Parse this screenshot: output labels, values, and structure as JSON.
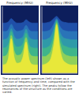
{
  "chart_data": [
    {
      "type": "area",
      "xlabel": "Frequency (MHz)",
      "x": [
        0,
        1,
        2,
        3,
        4,
        5,
        6,
        7,
        8,
        9,
        10,
        11,
        12
      ],
      "xlim": [
        0,
        12
      ],
      "ylim": [
        0,
        12
      ],
      "tick_labels": false,
      "grid": false,
      "series": [
        {
          "color": "#1f4fa8",
          "values": [
            9,
            9,
            9.2,
            9.8,
            9.3,
            9,
            9,
            9.1,
            9.6,
            9.2,
            9,
            9,
            9
          ]
        },
        {
          "color": "#2a74b8",
          "values": [
            7.5,
            7.5,
            7.8,
            8.8,
            7.9,
            7.5,
            7.6,
            7.8,
            8.6,
            7.8,
            7.5,
            7.5,
            7.5
          ]
        },
        {
          "color": "#2f9aa8",
          "values": [
            6,
            6.1,
            6.5,
            8,
            6.6,
            6.1,
            6.2,
            6.6,
            7.9,
            6.5,
            6.1,
            6,
            6
          ]
        },
        {
          "color": "#3fb58a",
          "values": [
            4.5,
            4.6,
            5.2,
            7.5,
            5.3,
            4.7,
            4.8,
            5.4,
            7.2,
            5.1,
            4.6,
            4.5,
            4.5
          ]
        },
        {
          "color": "#8fd05a",
          "values": [
            3,
            3.1,
            3.9,
            6.8,
            4,
            3.2,
            3.3,
            4.2,
            6.4,
            3.8,
            3.1,
            3,
            3
          ]
        },
        {
          "color": "#e8e83a",
          "values": [
            1.5,
            1.6,
            2.6,
            6.2,
            2.8,
            1.8,
            1.9,
            3,
            5.6,
            2.5,
            1.6,
            1.5,
            1.5
          ]
        }
      ]
    },
    {
      "type": "area",
      "xlabel": "Frequency (MHz)",
      "x": [
        0,
        1,
        2,
        3,
        4,
        5,
        6,
        7,
        8,
        9,
        10,
        11,
        12
      ],
      "xlim": [
        0,
        12
      ],
      "ylim": [
        0,
        12
      ],
      "tick_labels": false,
      "grid": false,
      "series": [
        {
          "color": "#1f4fa8",
          "values": [
            9,
            9,
            9.1,
            9.3,
            9.8,
            10.2,
            9.6,
            9.2,
            9.1,
            9,
            9,
            9,
            9
          ]
        },
        {
          "color": "#2a74b8",
          "values": [
            7.5,
            7.5,
            7.6,
            7.9,
            8.8,
            9.8,
            8.5,
            7.8,
            7.6,
            7.5,
            7.5,
            7.5,
            7.5
          ]
        },
        {
          "color": "#2f9aa8",
          "values": [
            6,
            6,
            6.2,
            6.6,
            7.9,
            9.6,
            7.5,
            6.5,
            6.2,
            6.1,
            6,
            6,
            6
          ]
        },
        {
          "color": "#3fb58a",
          "values": [
            4.5,
            4.5,
            4.7,
            5.2,
            6.9,
            9.3,
            6.6,
            5.1,
            4.8,
            4.6,
            4.5,
            4.5,
            4.5
          ]
        },
        {
          "color": "#8fd05a",
          "values": [
            3,
            3,
            3.3,
            3.9,
            5.9,
            9,
            5.6,
            3.8,
            3.3,
            3.1,
            3,
            3,
            3
          ]
        },
        {
          "color": "#e8e83a",
          "values": [
            1.5,
            1.6,
            1.9,
            2.6,
            4.9,
            8.7,
            4.6,
            2.5,
            1.9,
            1.6,
            1.5,
            1.5,
            1.5
          ]
        }
      ]
    }
  ],
  "caption": "The acoustic power spectrum (left) shown as a function of frequency and time, compared with the simulated spectrum (right). The peaks follow the resonances of the structure as the conditions are varied."
}
